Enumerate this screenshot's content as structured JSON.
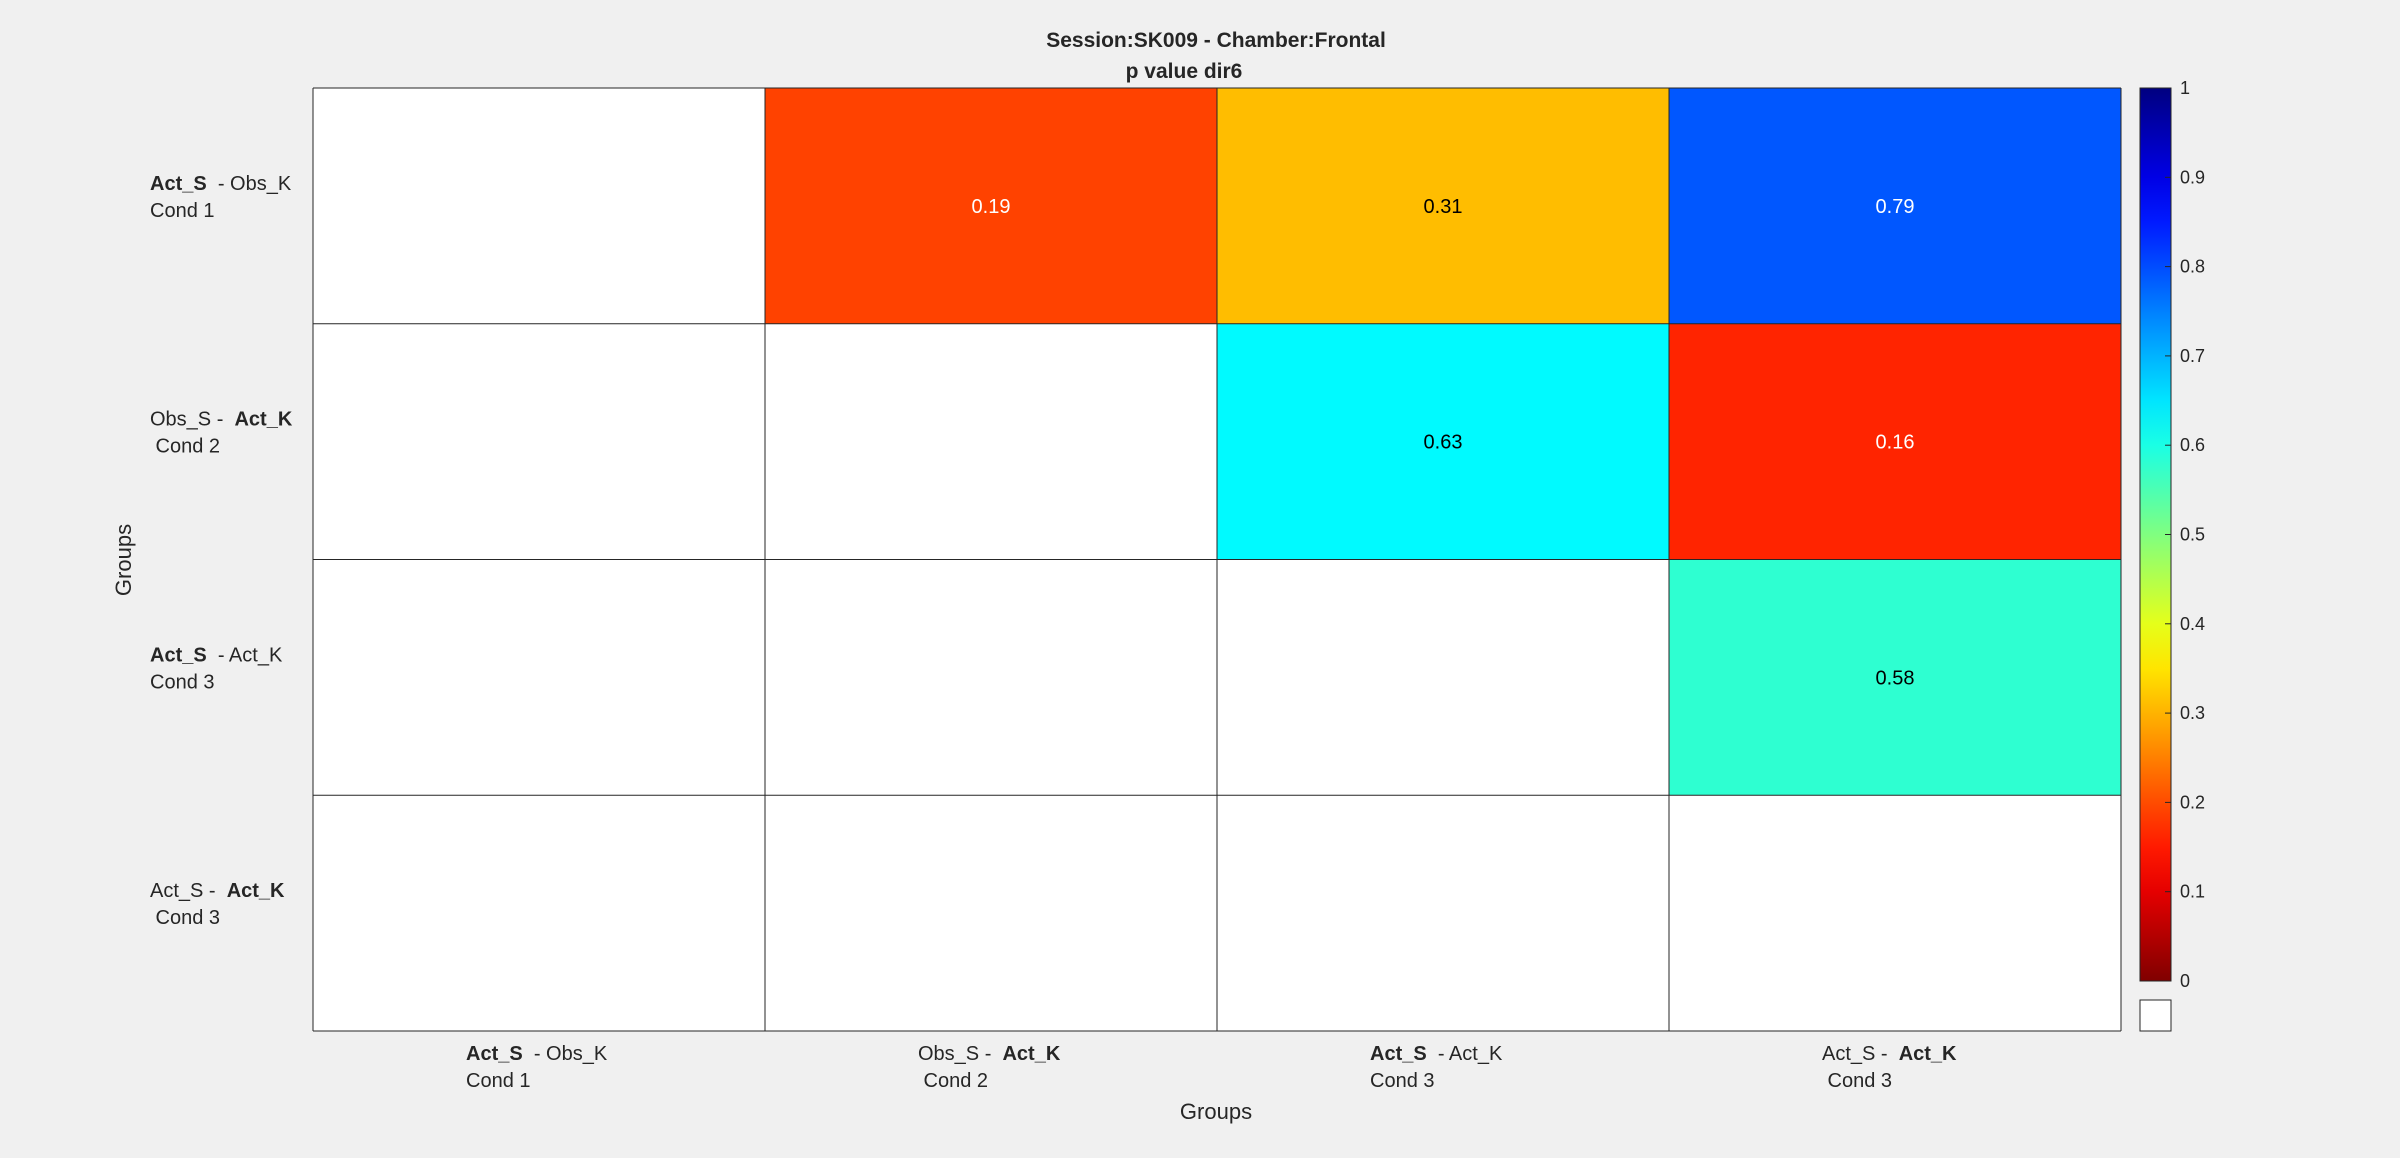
{
  "chart_data": {
    "type": "heatmap",
    "title": "Session:SK009 - Chamber:Frontal",
    "subtitle": "p value dir6",
    "xlabel": "Groups",
    "ylabel": "Groups",
    "row_labels": [
      {
        "line1": [
          {
            "t": "Act_S",
            "bold": true
          },
          {
            "t": "  - Obs_K",
            "bold": false
          }
        ],
        "line2": "Cond 1"
      },
      {
        "line1": [
          {
            "t": "Obs_S -  ",
            "bold": false
          },
          {
            "t": "Act_K",
            "bold": true
          }
        ],
        "line2": " Cond 2"
      },
      {
        "line1": [
          {
            "t": "Act_S",
            "bold": true
          },
          {
            "t": "  - Act_K",
            "bold": false
          }
        ],
        "line2": "Cond 3"
      },
      {
        "line1": [
          {
            "t": "Act_S -  ",
            "bold": false
          },
          {
            "t": "Act_K",
            "bold": true
          }
        ],
        "line2": " Cond 3"
      }
    ],
    "col_labels": [
      {
        "line1": [
          {
            "t": "Act_S",
            "bold": true
          },
          {
            "t": "  - Obs_K",
            "bold": false
          }
        ],
        "line2": "Cond 1"
      },
      {
        "line1": [
          {
            "t": "Obs_S -  ",
            "bold": false
          },
          {
            "t": "Act_K",
            "bold": true
          }
        ],
        "line2": " Cond 2"
      },
      {
        "line1": [
          {
            "t": "Act_S",
            "bold": true
          },
          {
            "t": "  - Act_K",
            "bold": false
          }
        ],
        "line2": "Cond 3"
      },
      {
        "line1": [
          {
            "t": "Act_S -  ",
            "bold": false
          },
          {
            "t": "Act_K",
            "bold": true
          }
        ],
        "line2": " Cond 3"
      }
    ],
    "values": [
      [
        null,
        0.19,
        0.31,
        0.79
      ],
      [
        null,
        null,
        0.63,
        0.16
      ],
      [
        null,
        null,
        null,
        0.58
      ],
      [
        null,
        null,
        null,
        null
      ]
    ],
    "colorbar": {
      "range": [
        0,
        1
      ],
      "ticks": [
        "0",
        "0.1",
        "0.2",
        "0.3",
        "0.4",
        "0.5",
        "0.6",
        "0.7",
        "0.8",
        "0.9",
        "1"
      ],
      "colormap": "jet-reversed",
      "nan_color": "#ffffff"
    }
  }
}
